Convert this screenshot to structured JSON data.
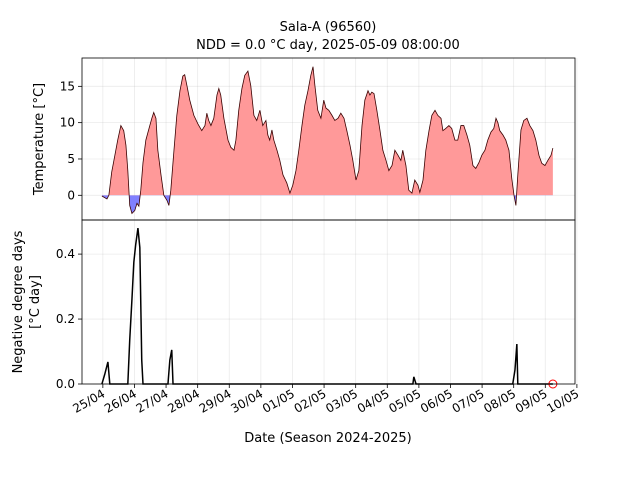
{
  "chart_data": [
    {
      "type": "area",
      "title": "Sala-A (96560)",
      "subtitle": "NDD = 0.0 °C day, 2025-05-09 08:00:00",
      "ylabel": "Temperature [°C]",
      "line_color": "#3a0000",
      "above_color": "#ff9999",
      "below_color": "#8080ff",
      "ylim": [
        -3.4,
        18.9
      ],
      "yticks": [
        0,
        5,
        10,
        15
      ],
      "x": [
        -0.03,
        0.13,
        0.19,
        0.28,
        0.38,
        0.47,
        0.57,
        0.66,
        0.73,
        0.79,
        0.85,
        0.92,
        1.01,
        1.08,
        1.14,
        1.2,
        1.27,
        1.36,
        1.46,
        1.55,
        1.61,
        1.68,
        1.74,
        1.84,
        1.93,
        2.03,
        2.09,
        2.15,
        2.25,
        2.34,
        2.44,
        2.53,
        2.59,
        2.66,
        2.75,
        2.88,
        3.01,
        3.13,
        3.23,
        3.29,
        3.35,
        3.42,
        3.51,
        3.61,
        3.67,
        3.73,
        3.83,
        3.96,
        4.05,
        4.15,
        4.21,
        4.3,
        4.4,
        4.49,
        4.59,
        4.68,
        4.78,
        4.87,
        4.97,
        5.06,
        5.16,
        5.22,
        5.28,
        5.35,
        5.41,
        5.51,
        5.6,
        5.7,
        5.82,
        5.92,
        6.01,
        6.11,
        6.2,
        6.3,
        6.39,
        6.49,
        6.58,
        6.65,
        6.71,
        6.8,
        6.9,
        6.99,
        7.06,
        7.15,
        7.25,
        7.34,
        7.44,
        7.53,
        7.63,
        7.72,
        7.82,
        7.91,
        8.01,
        8.1,
        8.2,
        8.29,
        8.39,
        8.45,
        8.51,
        8.58,
        8.67,
        8.77,
        8.86,
        8.96,
        9.05,
        9.15,
        9.24,
        9.34,
        9.43,
        9.49,
        9.59,
        9.68,
        9.78,
        9.87,
        9.97,
        10.03,
        10.13,
        10.22,
        10.32,
        10.41,
        10.51,
        10.6,
        10.7,
        10.76,
        10.85,
        10.95,
        11.04,
        11.14,
        11.23,
        11.33,
        11.42,
        11.52,
        11.61,
        11.71,
        11.8,
        11.9,
        11.99,
        12.09,
        12.18,
        12.28,
        12.37,
        12.44,
        12.5,
        12.56,
        12.66,
        12.75,
        12.85,
        12.94,
        13.01,
        13.07,
        13.13,
        13.23,
        13.32,
        13.42,
        13.51,
        13.61,
        13.7,
        13.8,
        13.89,
        13.99,
        14.08,
        14.18,
        14.24
      ],
      "values": [
        -0.1,
        -0.5,
        0.0,
        3.2,
        5.5,
        7.6,
        9.6,
        8.9,
        6.9,
        3.4,
        -1.4,
        -2.5,
        -2.1,
        -1.1,
        -1.5,
        0.7,
        4.5,
        7.6,
        9.2,
        10.6,
        11.4,
        10.6,
        6.2,
        2.8,
        0.0,
        -0.7,
        -1.4,
        0.7,
        6.2,
        11.0,
        14.4,
        16.4,
        16.6,
        15.1,
        13.1,
        11.0,
        9.8,
        8.9,
        9.6,
        11.3,
        10.3,
        9.6,
        10.6,
        13.8,
        14.7,
        13.8,
        10.6,
        7.6,
        6.6,
        6.2,
        7.6,
        11.7,
        14.7,
        16.5,
        17.1,
        15.1,
        11.0,
        10.3,
        11.7,
        9.6,
        10.3,
        8.3,
        7.6,
        9.0,
        7.6,
        6.2,
        4.8,
        2.8,
        1.7,
        0.3,
        1.4,
        3.4,
        6.2,
        9.6,
        12.4,
        14.4,
        16.5,
        17.7,
        15.1,
        11.7,
        10.6,
        13.1,
        12.0,
        11.7,
        11.0,
        10.3,
        10.6,
        11.3,
        10.6,
        8.9,
        6.9,
        4.8,
        2.1,
        3.4,
        9.6,
        13.1,
        14.4,
        13.8,
        14.2,
        14.0,
        11.7,
        8.9,
        6.2,
        4.8,
        3.4,
        4.1,
        6.2,
        5.5,
        4.8,
        6.2,
        4.1,
        0.7,
        0.3,
        2.1,
        1.4,
        0.4,
        2.1,
        6.2,
        8.9,
        11.0,
        11.7,
        11.0,
        10.6,
        8.9,
        9.2,
        9.6,
        9.2,
        7.6,
        7.6,
        9.6,
        9.6,
        8.3,
        6.9,
        4.1,
        3.7,
        4.5,
        5.5,
        6.2,
        7.6,
        8.7,
        9.2,
        10.6,
        10.0,
        8.9,
        8.3,
        7.6,
        6.2,
        2.3,
        0.0,
        -1.4,
        2.8,
        9.0,
        10.3,
        10.6,
        9.6,
        8.9,
        7.6,
        5.5,
        4.4,
        4.1,
        4.8,
        5.5,
        6.5
      ]
    },
    {
      "type": "line",
      "ylabel": [
        "Negative degree days",
        "[°C day]"
      ],
      "xlabel": "Date (Season 2024-2025)",
      "color": "#000000",
      "xlim": [
        -0.66,
        14.94
      ],
      "xticks": [
        {
          "value": 0,
          "label": "25/04"
        },
        {
          "value": 1,
          "label": "26/04"
        },
        {
          "value": 2,
          "label": "27/04"
        },
        {
          "value": 3,
          "label": "28/04"
        },
        {
          "value": 4,
          "label": "29/04"
        },
        {
          "value": 5,
          "label": "30/04"
        },
        {
          "value": 6,
          "label": "01/05"
        },
        {
          "value": 7,
          "label": "02/05"
        },
        {
          "value": 8,
          "label": "03/05"
        },
        {
          "value": 9,
          "label": "04/05"
        },
        {
          "value": 10,
          "label": "05/05"
        },
        {
          "value": 11,
          "label": "06/05"
        },
        {
          "value": 12,
          "label": "07/05"
        },
        {
          "value": 13,
          "label": "08/05"
        },
        {
          "value": 14,
          "label": "09/05"
        },
        {
          "value": 15,
          "label": "10/05"
        }
      ],
      "ylim": [
        0,
        0.505
      ],
      "yticks": [
        {
          "value": 0,
          "label": "0.0"
        },
        {
          "value": 0.2,
          "label": "0.2"
        },
        {
          "value": 0.4,
          "label": "0.4"
        }
      ],
      "x": [
        -0.03,
        0.06,
        0.16,
        0.22,
        0.79,
        0.85,
        0.92,
        0.98,
        1.04,
        1.11,
        1.17,
        1.23,
        1.27,
        2.06,
        2.12,
        2.18,
        2.22,
        9.81,
        9.84,
        9.91,
        12.97,
        13.04,
        13.1,
        13.13,
        14.24
      ],
      "values": [
        0,
        0.03,
        0.068,
        0,
        0,
        0.135,
        0.26,
        0.375,
        0.43,
        0.48,
        0.42,
        0.074,
        0,
        0,
        0.074,
        0.105,
        0,
        0,
        0.022,
        0,
        0,
        0.043,
        0.123,
        0,
        0
      ],
      "marker": {
        "x": 14.24,
        "value": 0.0,
        "color": "#ff0000"
      }
    }
  ]
}
